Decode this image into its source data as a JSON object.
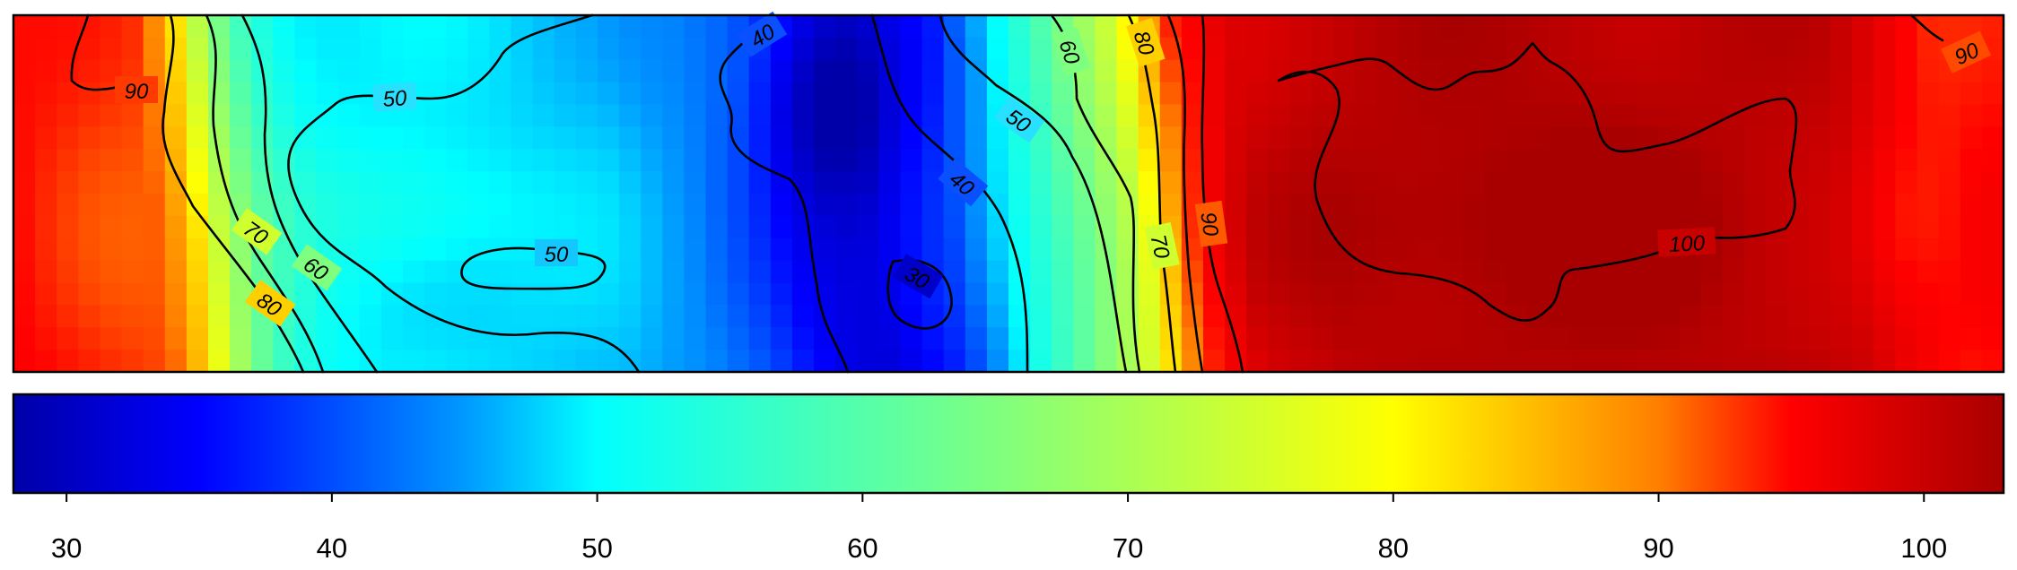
{
  "chart_data": {
    "type": "heatmap",
    "title": "",
    "xlabel": "",
    "ylabel": "",
    "legend_placement": "bottom",
    "colorscale": {
      "name": "jet",
      "range": [
        28,
        103
      ],
      "ticks": [
        30,
        40,
        50,
        60,
        70,
        80,
        90,
        100
      ],
      "tick_labels": [
        "30",
        "40",
        "50",
        "60",
        "70",
        "80",
        "90",
        "100"
      ],
      "stops": [
        {
          "value": 28,
          "color": "#0000a8"
        },
        {
          "value": 35,
          "color": "#0000ff"
        },
        {
          "value": 45,
          "color": "#0099ff"
        },
        {
          "value": 50,
          "color": "#00ffff"
        },
        {
          "value": 65,
          "color": "#7fff7f"
        },
        {
          "value": 80,
          "color": "#ffff00"
        },
        {
          "value": 90,
          "color": "#ff7f00"
        },
        {
          "value": 95,
          "color": "#ff0000"
        },
        {
          "value": 103,
          "color": "#a80000"
        }
      ]
    },
    "x_range": [
      0,
      1
    ],
    "y_range": [
      0,
      1
    ],
    "field_profile": {
      "x": [
        0.0,
        0.04,
        0.07,
        0.08,
        0.09,
        0.1,
        0.11,
        0.12,
        0.13,
        0.14,
        0.15,
        0.16,
        0.18,
        0.25,
        0.3,
        0.34,
        0.37,
        0.39,
        0.41,
        0.43,
        0.45,
        0.47,
        0.48,
        0.5,
        0.52,
        0.54,
        0.56,
        0.57,
        0.58,
        0.59,
        0.6,
        0.61,
        0.62,
        0.66,
        0.8,
        0.92,
        0.97,
        1.0
      ],
      "value": [
        95,
        93,
        92,
        88,
        82,
        73,
        66,
        60,
        56,
        53,
        51,
        50,
        49,
        48,
        47,
        44,
        40,
        36,
        33,
        32,
        35,
        38,
        42,
        50,
        57,
        65,
        73,
        80,
        87,
        93,
        95,
        97,
        99,
        101,
        102,
        100,
        95,
        95
      ]
    },
    "contour_levels": [
      30,
      40,
      50,
      60,
      70,
      80,
      90,
      100
    ],
    "contour_labels": [
      {
        "text": "90",
        "value": 90
      },
      {
        "text": "50",
        "value": 50
      },
      {
        "text": "70",
        "value": 70
      },
      {
        "text": "60",
        "value": 60
      },
      {
        "text": "80",
        "value": 80
      },
      {
        "text": "50",
        "value": 50
      },
      {
        "text": "40",
        "value": 40
      },
      {
        "text": "30",
        "value": 30
      },
      {
        "text": "40",
        "value": 40
      },
      {
        "text": "50",
        "value": 50
      },
      {
        "text": "60",
        "value": 60
      },
      {
        "text": "80",
        "value": 80
      },
      {
        "text": "70",
        "value": 70
      },
      {
        "text": "90",
        "value": 90
      },
      {
        "text": "100",
        "value": 100
      },
      {
        "text": "90",
        "value": 90
      }
    ]
  }
}
